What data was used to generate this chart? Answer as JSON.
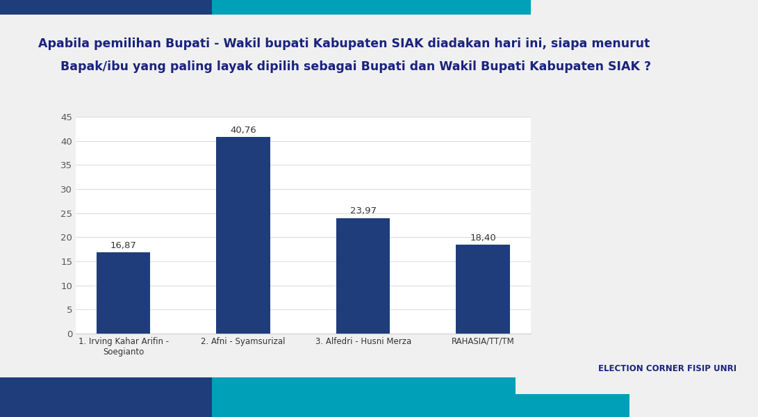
{
  "title_line1": "Apabila pemilihan Bupati - Wakil bupati Kabupaten SIAK diadakan hari ini, siapa menurut",
  "title_line2": "Bapak/ibu yang paling layak dipilih sebagai Bupati dan Wakil Bupati Kabupaten SIAK ?",
  "categories": [
    "1. Irving Kahar Arifin -\nSoegianto",
    "2. Afni - Syamsurizal",
    "3. Alfedri - Husni Merza",
    "RAHASIA/TT/TM"
  ],
  "values": [
    16.87,
    40.76,
    23.97,
    18.4
  ],
  "bar_color": "#1F3D7A",
  "value_labels": [
    "16,87",
    "40,76",
    "23,97",
    "18,40"
  ],
  "ylim": [
    0,
    45
  ],
  "yticks": [
    0,
    5,
    10,
    15,
    20,
    25,
    30,
    35,
    40,
    45
  ],
  "background_color": "#f0f0f0",
  "chart_bg": "#ffffff",
  "title_color": "#1a237e",
  "footer_left_color": "#1F3D7A",
  "footer_right_color": "#00A0B8",
  "top_left_color": "#1F3D7A",
  "top_right_color": "#00A0B8",
  "title_fontsize": 12.5,
  "tick_fontsize": 9.5,
  "value_fontsize": 9.5,
  "xlabel_fontsize": 8.5,
  "election_text": "ELECTION CORNER FISIP UNRI"
}
